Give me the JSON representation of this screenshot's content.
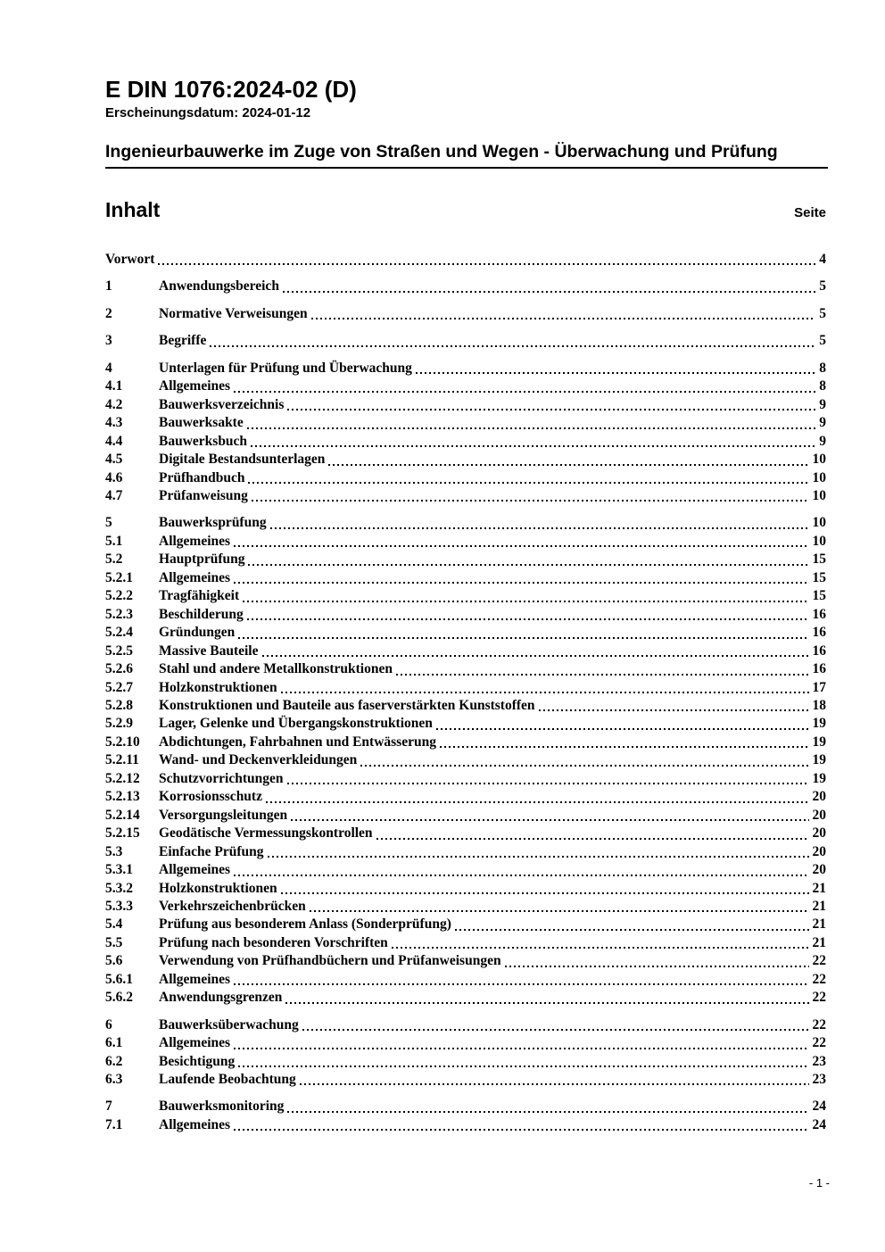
{
  "header": {
    "doc_number": "E DIN 1076:2024-02 (D)",
    "release_label": "Erscheinungsdatum: 2024-01-12",
    "doc_title": "Ingenieurbauwerke im Zuge von Straßen und Wegen - Überwachung und Prüfung"
  },
  "toc": {
    "heading": "Inhalt",
    "page_label": "Seite",
    "entries": [
      {
        "num": "",
        "title": "Vorwort",
        "page": "4",
        "group_start": true
      },
      {
        "num": "1",
        "title": "Anwendungsbereich",
        "page": "5",
        "group_start": true
      },
      {
        "num": "2",
        "title": "Normative Verweisungen",
        "page": "5",
        "group_start": true
      },
      {
        "num": "3",
        "title": "Begriffe",
        "page": "5",
        "group_start": true
      },
      {
        "num": "4",
        "title": "Unterlagen für Prüfung und Überwachung",
        "page": "8",
        "group_start": true
      },
      {
        "num": "4.1",
        "title": "Allgemeines",
        "page": "8",
        "group_start": false
      },
      {
        "num": "4.2",
        "title": "Bauwerksverzeichnis",
        "page": "9",
        "group_start": false
      },
      {
        "num": "4.3",
        "title": "Bauwerksakte",
        "page": "9",
        "group_start": false
      },
      {
        "num": "4.4",
        "title": "Bauwerksbuch",
        "page": "9",
        "group_start": false
      },
      {
        "num": "4.5",
        "title": "Digitale Bestandsunterlagen",
        "page": "10",
        "group_start": false
      },
      {
        "num": "4.6",
        "title": "Prüfhandbuch",
        "page": "10",
        "group_start": false
      },
      {
        "num": "4.7",
        "title": "Prüfanweisung",
        "page": "10",
        "group_start": false
      },
      {
        "num": "5",
        "title": "Bauwerksprüfung",
        "page": "10",
        "group_start": true
      },
      {
        "num": "5.1",
        "title": "Allgemeines",
        "page": "10",
        "group_start": false
      },
      {
        "num": "5.2",
        "title": "Hauptprüfung",
        "page": "15",
        "group_start": false
      },
      {
        "num": "5.2.1",
        "title": "Allgemeines",
        "page": "15",
        "group_start": false
      },
      {
        "num": "5.2.2",
        "title": "Tragfähigkeit",
        "page": "15",
        "group_start": false
      },
      {
        "num": "5.2.3",
        "title": "Beschilderung",
        "page": "16",
        "group_start": false
      },
      {
        "num": "5.2.4",
        "title": "Gründungen",
        "page": "16",
        "group_start": false
      },
      {
        "num": "5.2.5",
        "title": "Massive Bauteile",
        "page": "16",
        "group_start": false
      },
      {
        "num": "5.2.6",
        "title": "Stahl und andere Metallkonstruktionen",
        "page": "16",
        "group_start": false
      },
      {
        "num": "5.2.7",
        "title": "Holzkonstruktionen",
        "page": "17",
        "group_start": false
      },
      {
        "num": "5.2.8",
        "title": "Konstruktionen und Bauteile aus faserverstärkten Kunststoffen",
        "page": "18",
        "group_start": false
      },
      {
        "num": "5.2.9",
        "title": "Lager, Gelenke und Übergangskonstruktionen",
        "page": "19",
        "group_start": false
      },
      {
        "num": "5.2.10",
        "title": "Abdichtungen, Fahrbahnen und Entwässerung",
        "page": "19",
        "group_start": false
      },
      {
        "num": "5.2.11",
        "title": "Wand- und Deckenverkleidungen",
        "page": "19",
        "group_start": false
      },
      {
        "num": "5.2.12",
        "title": "Schutzvorrichtungen",
        "page": "19",
        "group_start": false
      },
      {
        "num": "5.2.13",
        "title": "Korrosionsschutz",
        "page": "20",
        "group_start": false
      },
      {
        "num": "5.2.14",
        "title": "Versorgungsleitungen",
        "page": "20",
        "group_start": false
      },
      {
        "num": "5.2.15",
        "title": "Geodätische Vermessungskontrollen",
        "page": "20",
        "group_start": false
      },
      {
        "num": "5.3",
        "title": "Einfache Prüfung",
        "page": "20",
        "group_start": false
      },
      {
        "num": "5.3.1",
        "title": "Allgemeines",
        "page": "20",
        "group_start": false
      },
      {
        "num": "5.3.2",
        "title": "Holzkonstruktionen",
        "page": "21",
        "group_start": false
      },
      {
        "num": "5.3.3",
        "title": "Verkehrszeichenbrücken",
        "page": "21",
        "group_start": false
      },
      {
        "num": "5.4",
        "title": "Prüfung aus besonderem Anlass (Sonderprüfung)",
        "page": "21",
        "group_start": false
      },
      {
        "num": "5.5",
        "title": "Prüfung nach besonderen Vorschriften",
        "page": "21",
        "group_start": false
      },
      {
        "num": "5.6",
        "title": "Verwendung von Prüfhandbüchern und Prüfanweisungen",
        "page": "22",
        "group_start": false
      },
      {
        "num": "5.6.1",
        "title": "Allgemeines",
        "page": "22",
        "group_start": false
      },
      {
        "num": "5.6.2",
        "title": "Anwendungsgrenzen",
        "page": "22",
        "group_start": false
      },
      {
        "num": "6",
        "title": "Bauwerksüberwachung",
        "page": "22",
        "group_start": true
      },
      {
        "num": "6.1",
        "title": "Allgemeines",
        "page": "22",
        "group_start": false
      },
      {
        "num": "6.2",
        "title": "Besichtigung",
        "page": "23",
        "group_start": false
      },
      {
        "num": "6.3",
        "title": "Laufende Beobachtung",
        "page": "23",
        "group_start": false
      },
      {
        "num": "7",
        "title": "Bauwerksmonitoring",
        "page": "24",
        "group_start": true
      },
      {
        "num": "7.1",
        "title": "Allgemeines",
        "page": "24",
        "group_start": false
      }
    ]
  },
  "footer": {
    "page_number": "- 1 -"
  }
}
